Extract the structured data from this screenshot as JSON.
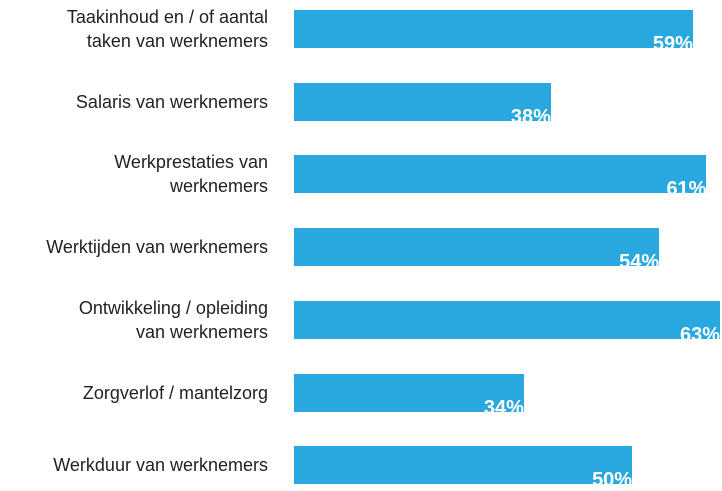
{
  "chart_data": {
    "type": "bar",
    "orientation": "horizontal",
    "categories": [
      "Taakinhoud en / of aantal\ntaken van werknemers",
      "Salaris van werknemers",
      "Werkprestaties van\nwerknemers",
      "Werktijden van werknemers",
      "Ontwikkeling / opleiding\nvan werknemers",
      "Zorgverlof / mantelzorg",
      "Werkduur van werknemers"
    ],
    "values": [
      59,
      38,
      61,
      54,
      63,
      34,
      50
    ],
    "value_labels": [
      "59%",
      "38%",
      "61%",
      "54%",
      "63%",
      "34%",
      "50%"
    ],
    "unit": "%",
    "xlim": [
      0,
      63
    ],
    "bar_color": "#29a8e0",
    "label_color": "#ffffff",
    "text_color": "#222222",
    "grid": false,
    "legend": "none"
  }
}
